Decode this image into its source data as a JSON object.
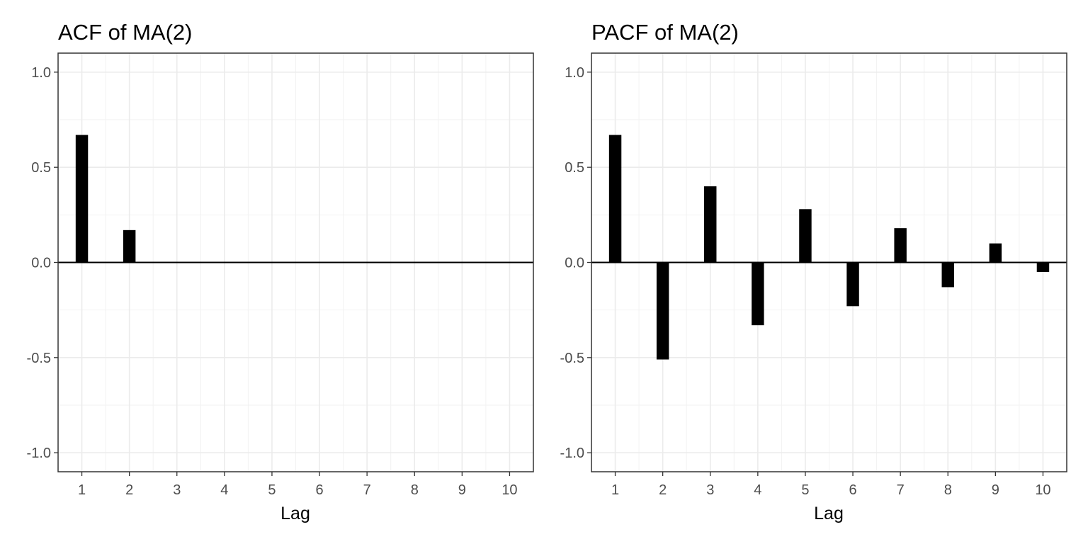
{
  "chart_data": [
    {
      "type": "bar",
      "title": "ACF of MA(2)",
      "xlabel": "Lag",
      "ylabel": "",
      "categories": [
        1,
        2,
        3,
        4,
        5,
        6,
        7,
        8,
        9,
        10
      ],
      "values": [
        0.67,
        0.17,
        0,
        0,
        0,
        0,
        0,
        0,
        0,
        0
      ],
      "ylim": [
        -1.1,
        1.1
      ],
      "yticks": [
        "1.0",
        "0.5",
        "0.0",
        "-0.5",
        "-1.0"
      ],
      "xticks": [
        "1",
        "2",
        "3",
        "4",
        "5",
        "6",
        "7",
        "8",
        "9",
        "10"
      ],
      "grid": true,
      "bar_color": "#000000"
    },
    {
      "type": "bar",
      "title": "PACF of MA(2)",
      "xlabel": "Lag",
      "ylabel": "",
      "categories": [
        1,
        2,
        3,
        4,
        5,
        6,
        7,
        8,
        9,
        10
      ],
      "values": [
        0.67,
        -0.51,
        0.4,
        -0.33,
        0.28,
        -0.23,
        0.18,
        -0.13,
        0.1,
        -0.05
      ],
      "ylim": [
        -1.1,
        1.1
      ],
      "yticks": [
        "1.0",
        "0.5",
        "0.0",
        "-0.5",
        "-1.0"
      ],
      "xticks": [
        "1",
        "2",
        "3",
        "4",
        "5",
        "6",
        "7",
        "8",
        "9",
        "10"
      ],
      "grid": true,
      "bar_color": "#000000"
    }
  ]
}
